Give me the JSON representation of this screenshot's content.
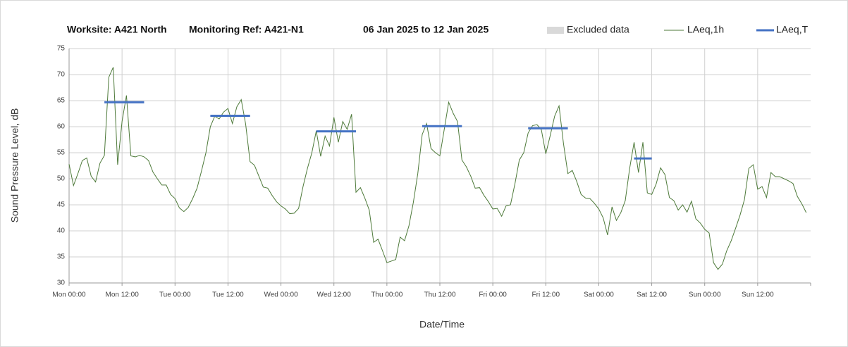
{
  "chart_data": {
    "type": "line",
    "title_parts": [
      "Worksite: A421 North",
      "Monitoring Ref: A421-N1",
      "06 Jan 2025 to 12 Jan 2025"
    ],
    "xlabel": "Date/Time",
    "ylabel": "Sound Pressure Level, dB",
    "xlim": [
      0,
      168
    ],
    "xticks": [
      {
        "value": 0,
        "label": "Mon 00:00"
      },
      {
        "value": 12,
        "label": "Mon 12:00"
      },
      {
        "value": 24,
        "label": "Tue 00:00"
      },
      {
        "value": 36,
        "label": "Tue 12:00"
      },
      {
        "value": 48,
        "label": "Wed 00:00"
      },
      {
        "value": 60,
        "label": "Wed 12:00"
      },
      {
        "value": 72,
        "label": "Thu 00:00"
      },
      {
        "value": 84,
        "label": "Thu 12:00"
      },
      {
        "value": 96,
        "label": "Fri 00:00"
      },
      {
        "value": 108,
        "label": "Fri 12:00"
      },
      {
        "value": 120,
        "label": "Sat 00:00"
      },
      {
        "value": 132,
        "label": "Sat 12:00"
      },
      {
        "value": 144,
        "label": "Sun 00:00"
      },
      {
        "value": 156,
        "label": "Sun 12:00"
      }
    ],
    "ylim": [
      30,
      75
    ],
    "yticks": [
      30,
      35,
      40,
      45,
      50,
      55,
      60,
      65,
      70,
      75
    ],
    "grid": true,
    "legend": "top-right",
    "x": [
      0,
      1,
      2,
      3,
      4,
      5,
      6,
      7,
      8,
      9,
      10,
      11,
      12,
      13,
      14,
      15,
      16,
      17,
      18,
      19,
      20,
      21,
      22,
      23,
      24,
      25,
      26,
      27,
      28,
      29,
      30,
      31,
      32,
      33,
      34,
      35,
      36,
      37,
      38,
      39,
      40,
      41,
      42,
      43,
      44,
      45,
      46,
      47,
      48,
      49,
      50,
      51,
      52,
      53,
      54,
      55,
      56,
      57,
      58,
      59,
      60,
      61,
      62,
      63,
      64,
      65,
      66,
      67,
      68,
      69,
      70,
      71,
      72,
      73,
      74,
      75,
      76,
      77,
      78,
      79,
      80,
      81,
      82,
      83,
      84,
      85,
      86,
      87,
      88,
      89,
      90,
      91,
      92,
      93,
      94,
      95,
      96,
      97,
      98,
      99,
      100,
      101,
      102,
      103,
      104,
      105,
      106,
      107,
      108,
      109,
      110,
      111,
      112,
      113,
      114,
      115,
      116,
      117,
      118,
      119,
      120,
      121,
      122,
      123,
      124,
      125,
      126,
      127,
      128,
      129,
      130,
      131,
      132,
      133,
      134,
      135,
      136,
      137,
      138,
      139,
      140,
      141,
      142,
      143,
      144,
      145,
      146,
      147,
      148,
      149,
      150,
      151,
      152,
      153,
      154,
      155,
      156,
      157,
      158,
      159,
      160,
      161,
      162,
      163,
      164,
      165,
      166,
      167
    ],
    "series": [
      {
        "name": "Excluded data",
        "color": "#d9d9d9"
      },
      {
        "name": "LAeq,1h",
        "color": "#4e7a3a",
        "values": [
          52.8,
          48.7,
          51,
          53.5,
          54,
          50.5,
          49.4,
          53,
          54.5,
          69.5,
          71.4,
          52.7,
          61,
          66,
          54.4,
          54.2,
          54.5,
          54.2,
          53.5,
          51.3,
          50,
          48.8,
          48.8,
          47,
          46.2,
          44.4,
          43.7,
          44.5,
          46.2,
          48.2,
          51.5,
          55,
          60,
          62,
          61.5,
          62.8,
          63.5,
          60.6,
          63.8,
          65.2,
          60.5,
          53.3,
          52.6,
          50.5,
          48.4,
          48.2,
          46.8,
          45.6,
          44.8,
          44.2,
          43.3,
          43.4,
          44.3,
          48.5,
          52,
          55,
          59.2,
          54.3,
          58.2,
          56.3,
          61.8,
          57,
          61,
          59.5,
          62.4,
          47.4,
          48.3,
          46.3,
          44,
          37.8,
          38.4,
          36.2,
          33.9,
          34.2,
          34.5,
          38.8,
          38.1,
          41,
          45.5,
          51,
          58.5,
          60.6,
          55.8,
          55,
          54.4,
          59.5,
          64.7,
          62.6,
          61,
          53.6,
          52.3,
          50.5,
          48.2,
          48.3,
          46.8,
          45.6,
          44.2,
          44.3,
          42.8,
          44.8,
          45,
          49,
          53.6,
          55,
          58.8,
          60.2,
          60.4,
          59.4,
          54.8,
          58.3,
          62,
          64,
          56.8,
          51,
          51.6,
          49.5,
          47,
          46.3,
          46.2,
          45.3,
          44.2,
          42.5,
          39.2,
          44.6,
          42,
          43.5,
          45.8,
          52,
          57,
          51.2,
          57,
          47.3,
          47,
          49,
          52.1,
          50.8,
          46.4,
          45.8,
          44,
          45,
          43.6,
          45.7,
          42.3,
          41.5,
          40.3,
          39.6,
          33.9,
          32.6,
          33.6,
          36.2,
          38.1,
          40.5,
          43,
          46,
          52,
          52.7,
          48,
          48.5,
          46.4,
          51.2,
          50.4,
          50.4,
          50,
          49.6,
          49.1,
          46.6,
          45.2,
          43.5
        ]
      },
      {
        "name": "LAeq,T",
        "color": "#4472c4",
        "segments": [
          {
            "x": [
              8,
              17
            ],
            "value": 64.7
          },
          {
            "x": [
              32,
              41
            ],
            "value": 62.1
          },
          {
            "x": [
              56,
              65
            ],
            "value": 59.1
          },
          {
            "x": [
              80,
              89
            ],
            "value": 60.1
          },
          {
            "x": [
              104,
              113
            ],
            "value": 59.7
          },
          {
            "x": [
              128,
              132
            ],
            "value": 53.9
          }
        ]
      }
    ]
  }
}
